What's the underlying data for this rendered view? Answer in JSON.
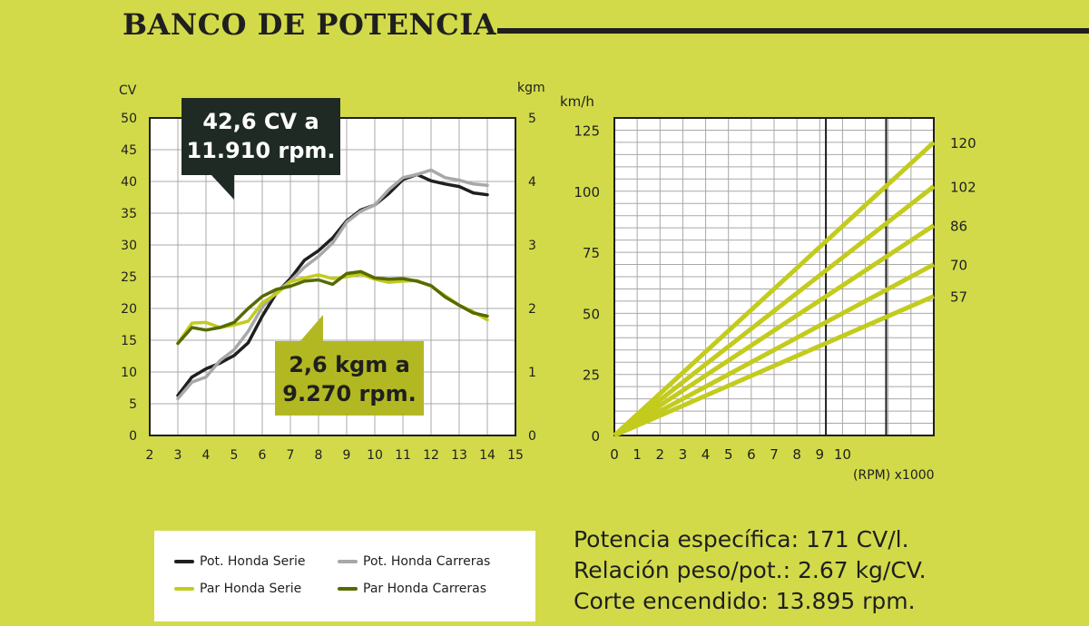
{
  "header": {
    "title": "BANCO DE POTENCIA"
  },
  "chart_data": [
    {
      "type": "line",
      "left_axis_unit": "CV",
      "right_axis_unit": "kgm",
      "xlim": [
        2,
        15
      ],
      "ylim": [
        0,
        50
      ],
      "y2lim": [
        0,
        5
      ],
      "x_ticks": [
        "2",
        "3",
        "4",
        "5",
        "6",
        "7",
        "8",
        "9",
        "10",
        "11",
        "12",
        "13",
        "14",
        "15"
      ],
      "y_ticks": [
        "0",
        "5",
        "10",
        "15",
        "20",
        "25",
        "30",
        "35",
        "40",
        "45",
        "50"
      ],
      "y2_ticks": [
        "0",
        "1",
        "2",
        "3",
        "4",
        "5"
      ],
      "grid": true,
      "series": [
        {
          "name": "Pot. Honda Serie",
          "axis": "left",
          "color": "#1f1f1f",
          "x": [
            3,
            3.5,
            4,
            4.5,
            5,
            5.5,
            6,
            6.5,
            7,
            7.5,
            8,
            8.5,
            9,
            9.5,
            10,
            10.5,
            11,
            11.5,
            12,
            12.5,
            13,
            13.5,
            14
          ],
          "y": [
            6.3,
            9.2,
            10.5,
            11.4,
            12.6,
            14.6,
            18.8,
            22.4,
            24.7,
            27.6,
            29.1,
            31.1,
            33.8,
            35.5,
            36.3,
            38.1,
            40.3,
            41.1,
            40.1,
            39.6,
            39.2,
            38.2,
            37.9
          ]
        },
        {
          "name": "Pot. Honda Carreras",
          "axis": "left",
          "color": "#a8a8a8",
          "x": [
            3,
            3.5,
            4,
            4.5,
            5,
            5.5,
            6,
            6.5,
            7,
            7.5,
            8,
            8.5,
            9,
            9.5,
            10,
            10.5,
            11,
            11.5,
            12,
            12.5,
            13,
            13.5,
            14
          ],
          "y": [
            5.8,
            8.4,
            9.2,
            11.8,
            13.5,
            16.4,
            20.2,
            22.6,
            24.3,
            26.5,
            28.2,
            30.3,
            33.6,
            35.3,
            36.3,
            38.7,
            40.6,
            41.1,
            41.8,
            40.6,
            40.2,
            39.6,
            39.4
          ]
        },
        {
          "name": "Par Honda Serie",
          "axis": "right",
          "color": "#c3cb1d",
          "x": [
            3,
            3.5,
            4,
            4.5,
            5,
            5.5,
            6,
            6.5,
            7,
            7.5,
            8,
            8.5,
            9,
            9.5,
            10,
            10.5,
            11,
            11.5,
            12,
            12.5,
            13,
            13.5,
            14
          ],
          "y": [
            1.45,
            1.77,
            1.78,
            1.7,
            1.74,
            1.8,
            2.09,
            2.23,
            2.42,
            2.48,
            2.53,
            2.47,
            2.5,
            2.54,
            2.46,
            2.41,
            2.43,
            2.44,
            2.35,
            2.2,
            2.05,
            1.95,
            1.82
          ]
        },
        {
          "name": "Par Honda Carreras",
          "axis": "right",
          "color": "#556b00",
          "x": [
            3,
            3.5,
            4,
            4.5,
            5,
            5.5,
            6,
            6.5,
            7,
            7.5,
            8,
            8.5,
            9,
            9.5,
            10,
            10.5,
            11,
            11.5,
            12,
            12.5,
            13,
            13.5,
            14
          ],
          "y": [
            1.45,
            1.7,
            1.66,
            1.7,
            1.78,
            2.0,
            2.19,
            2.3,
            2.35,
            2.43,
            2.45,
            2.38,
            2.55,
            2.58,
            2.48,
            2.46,
            2.47,
            2.43,
            2.36,
            2.18,
            2.05,
            1.93,
            1.88
          ]
        }
      ],
      "annotations": [
        {
          "id": "power",
          "text_line1": "42,6 CV a",
          "text_line2": "11.910 rpm."
        },
        {
          "id": "torque",
          "text_line1": "2,6 kgm a",
          "text_line2": "9.270 rpm."
        }
      ]
    },
    {
      "type": "line",
      "ylabel": "km/h",
      "xlabel": "(RPM) x1000",
      "xlim": [
        0,
        14
      ],
      "ylim": [
        0,
        130
      ],
      "x_ticks": [
        "0",
        "1",
        "2",
        "3",
        "4",
        "5",
        "6",
        "7",
        "8",
        "9",
        "10"
      ],
      "y_ticks": [
        "0",
        "25",
        "50",
        "75",
        "100",
        "125"
      ],
      "grid": true,
      "vertical_markers_x": [
        9.27,
        11.91
      ],
      "series": [
        {
          "label": "120",
          "x": [
            0,
            14
          ],
          "y": [
            0,
            120
          ],
          "color": "#c3cb1d"
        },
        {
          "label": "102",
          "x": [
            0,
            14
          ],
          "y": [
            0,
            102
          ],
          "color": "#c3cb1d"
        },
        {
          "label": "86",
          "x": [
            0,
            14
          ],
          "y": [
            0,
            86
          ],
          "color": "#c3cb1d"
        },
        {
          "label": "70",
          "x": [
            0,
            14
          ],
          "y": [
            0,
            70
          ],
          "color": "#c3cb1d"
        },
        {
          "label": "57",
          "x": [
            0,
            14
          ],
          "y": [
            0,
            57
          ],
          "color": "#c3cb1d"
        }
      ]
    }
  ],
  "legend": [
    {
      "label": "Pot. Honda Serie",
      "color": "#1f1f1f"
    },
    {
      "label": "Pot. Honda Carreras",
      "color": "#a8a8a8"
    },
    {
      "label": "Par Honda Serie",
      "color": "#c3cb1d"
    },
    {
      "label": "Par Honda Carreras",
      "color": "#556b00"
    }
  ],
  "specs": [
    {
      "label": "Potencia específica:",
      "value": "171 CV/l."
    },
    {
      "label": "Relación peso/pot.:",
      "value": "2.67 kg/CV."
    },
    {
      "label": "Corte encendido:",
      "value": "13.895 rpm."
    }
  ]
}
